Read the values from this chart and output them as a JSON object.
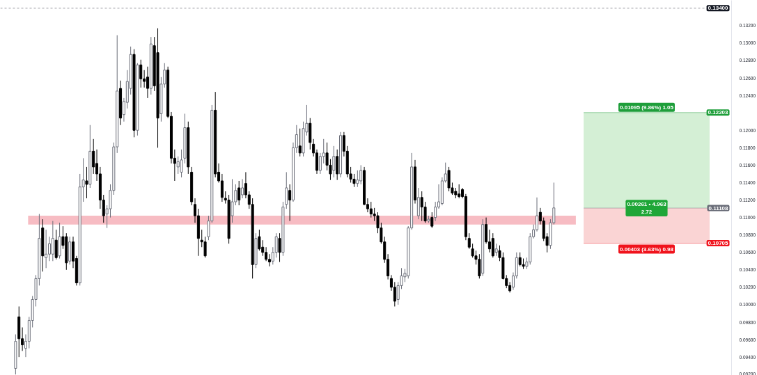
{
  "chart_data": {
    "type": "candlestick",
    "categories": [
      null,
      null,
      null,
      null,
      null,
      null,
      null,
      null,
      null,
      null,
      null,
      null,
      null,
      null,
      null,
      null,
      null,
      null,
      null,
      null,
      null,
      null,
      null,
      null,
      null,
      null,
      null,
      null,
      null,
      null,
      null,
      null,
      null,
      null,
      null,
      null,
      null,
      null,
      null,
      null,
      null,
      null,
      null,
      null,
      null,
      null,
      null,
      null,
      null,
      null,
      null,
      null,
      null,
      null,
      null,
      null,
      null,
      null,
      null,
      null,
      null,
      null,
      null,
      null,
      null,
      null,
      null,
      null,
      null,
      null,
      null,
      null,
      null,
      null,
      null,
      null,
      null,
      null,
      null,
      null,
      null,
      null,
      null,
      null,
      null,
      null,
      null,
      null,
      null,
      null,
      null,
      null,
      null,
      null,
      null,
      null,
      null,
      null,
      null,
      null,
      null,
      null,
      null,
      null,
      null,
      null,
      null,
      null,
      null,
      null,
      null,
      null,
      null,
      null,
      null,
      null,
      null,
      null,
      null,
      null,
      null,
      null,
      null,
      null,
      null,
      null,
      null,
      null,
      null,
      null,
      null,
      null,
      null,
      null,
      null,
      null,
      null,
      null,
      null,
      null,
      null,
      null,
      null,
      null,
      null,
      null,
      null,
      null,
      null,
      null,
      null,
      null,
      null,
      null,
      null,
      null,
      null,
      null,
      null,
      null,
      null,
      null,
      null,
      null,
      null,
      null,
      null,
      null,
      null,
      null,
      null,
      null,
      null,
      null,
      null,
      null,
      null,
      null,
      null,
      null,
      null,
      null,
      null,
      null,
      null,
      null,
      null,
      null,
      null,
      null,
      null,
      null,
      null,
      null,
      null,
      null,
      null,
      null,
      null,
      null,
      null,
      null,
      null,
      null,
      null,
      null,
      null,
      null,
      null,
      null,
      null,
      null,
      null,
      null,
      null,
      null
    ],
    "ohlc": [
      null,
      null,
      null,
      null,
      [
        0.0927,
        0.0966,
        0.092,
        0.0958
      ],
      [
        0.0986,
        0.0998,
        0.094,
        0.0961
      ],
      [
        0.0961,
        0.0974,
        0.0947,
        0.0954
      ],
      [
        0.095,
        0.0966,
        0.094,
        0.0958
      ],
      [
        0.0958,
        0.0986,
        0.095,
        0.0982
      ],
      [
        0.0982,
        0.101,
        0.0974,
        0.1006
      ],
      [
        0.1006,
        0.1034,
        0.0998,
        0.103
      ],
      [
        0.103,
        0.1104,
        0.1022,
        0.1076
      ],
      [
        0.1088,
        0.1098,
        0.1038,
        0.1056
      ],
      [
        0.1054,
        0.1086,
        0.1042,
        0.1058
      ],
      [
        0.1058,
        0.1078,
        0.105,
        0.107
      ],
      [
        0.1058,
        0.1096,
        0.105,
        0.1076
      ],
      [
        0.1074,
        0.1086,
        0.1052,
        0.1054
      ],
      [
        0.1056,
        0.1094,
        0.1053,
        0.1078
      ],
      [
        0.1078,
        0.109,
        0.1064,
        0.1068
      ],
      [
        0.1078,
        0.1082,
        0.104,
        0.1048
      ],
      [
        0.105,
        0.1078,
        0.1046,
        0.1072
      ],
      [
        0.1072,
        0.1078,
        0.1042,
        0.105
      ],
      [
        0.1053,
        0.1056,
        0.1022,
        0.1025
      ],
      [
        0.1025,
        0.115,
        0.1022,
        0.1135
      ],
      [
        0.1135,
        0.1168,
        0.1118,
        0.1143
      ],
      [
        0.1142,
        0.1158,
        0.1122,
        0.1138
      ],
      [
        0.1138,
        0.1206,
        0.1134,
        0.1176
      ],
      [
        0.1176,
        0.119,
        0.115,
        0.1158
      ],
      [
        0.1162,
        0.1178,
        0.1142,
        0.115
      ],
      [
        0.115,
        0.1158,
        0.111,
        0.112
      ],
      [
        0.112,
        0.1126,
        0.1094,
        0.1102
      ],
      [
        0.1104,
        0.1114,
        0.1088,
        0.111
      ],
      [
        0.111,
        0.1138,
        0.11,
        0.1131
      ],
      [
        0.1131,
        0.1186,
        0.1126,
        0.1181
      ],
      [
        0.1181,
        0.1309,
        0.1174,
        0.1245
      ],
      [
        0.1248,
        0.1257,
        0.1206,
        0.1214
      ],
      [
        0.1218,
        0.1237,
        0.121,
        0.1233
      ],
      [
        0.1232,
        0.1269,
        0.1225,
        0.1256
      ],
      [
        0.1248,
        0.1296,
        0.1241,
        0.1287
      ],
      [
        0.1287,
        0.1293,
        0.1192,
        0.12
      ],
      [
        0.12,
        0.1277,
        0.1194,
        0.1275
      ],
      [
        0.1275,
        0.1281,
        0.1249,
        0.1259
      ],
      [
        0.1259,
        0.1269,
        0.1249,
        0.1256
      ],
      [
        0.1261,
        0.1273,
        0.1237,
        0.1248
      ],
      [
        0.1248,
        0.1307,
        0.1241,
        0.1299
      ],
      [
        0.1297,
        0.1307,
        0.1245,
        0.1251
      ],
      [
        0.1289,
        0.1317,
        0.118,
        0.1214
      ],
      [
        0.1219,
        0.1261,
        0.121,
        0.1253
      ],
      [
        0.1253,
        0.1277,
        0.1249,
        0.1269
      ],
      [
        0.1269,
        0.1273,
        0.1214,
        0.1216
      ],
      [
        0.1216,
        0.1221,
        0.1162,
        0.1168
      ],
      [
        0.1168,
        0.1178,
        0.1142,
        0.1162
      ],
      [
        0.1158,
        0.117,
        0.115,
        0.1164
      ],
      [
        0.1152,
        0.1178,
        0.1146,
        0.1166
      ],
      [
        0.1168,
        0.1219,
        0.1162,
        0.1203
      ],
      [
        0.1203,
        0.121,
        0.115,
        0.1158
      ],
      [
        0.1152,
        0.1158,
        0.1114,
        0.1118
      ],
      [
        0.1115,
        0.1122,
        0.1094,
        0.1102
      ],
      [
        0.1102,
        0.111,
        0.1056,
        0.1076
      ],
      [
        0.1074,
        0.1086,
        0.1066,
        0.1072
      ],
      [
        0.1072,
        0.1078,
        0.1054,
        0.1056
      ],
      [
        0.1078,
        0.1102,
        0.1074,
        0.1096
      ],
      [
        0.1096,
        0.1229,
        0.1094,
        0.1223
      ],
      [
        0.1223,
        0.1244,
        0.1146,
        0.115
      ],
      [
        0.1152,
        0.1162,
        0.114,
        0.1142
      ],
      [
        0.1142,
        0.115,
        0.1118,
        0.1123
      ],
      [
        0.1122,
        0.113,
        0.1116,
        0.112
      ],
      [
        0.112,
        0.1126,
        0.107,
        0.1076
      ],
      [
        0.1102,
        0.1144,
        0.1094,
        0.1118
      ],
      [
        0.1118,
        0.1138,
        0.1114,
        0.1131
      ],
      [
        0.1134,
        0.1142,
        0.1114,
        0.112
      ],
      [
        0.1126,
        0.1144,
        0.1122,
        0.1134
      ],
      [
        0.1139,
        0.1152,
        0.1122,
        0.1126
      ],
      [
        0.1126,
        0.113,
        0.111,
        0.1115
      ],
      [
        0.1115,
        0.1122,
        0.103,
        0.1046
      ],
      [
        0.1046,
        0.1082,
        0.1042,
        0.1076
      ],
      [
        0.1078,
        0.1086,
        0.1062,
        0.1064
      ],
      [
        0.1066,
        0.1074,
        0.1056,
        0.106
      ],
      [
        0.106,
        0.1066,
        0.105,
        0.1052
      ],
      [
        0.1052,
        0.1058,
        0.1044,
        0.1049
      ],
      [
        0.105,
        0.1066,
        0.1046,
        0.106
      ],
      [
        0.106,
        0.1082,
        0.1054,
        0.1078
      ],
      [
        0.1076,
        0.1082,
        0.1049,
        0.106
      ],
      [
        0.106,
        0.1118,
        0.1056,
        0.1112
      ],
      [
        0.1115,
        0.1152,
        0.111,
        0.1134
      ],
      [
        0.1131,
        0.1138,
        0.1096,
        0.112
      ],
      [
        0.112,
        0.1186,
        0.1118,
        0.118
      ],
      [
        0.118,
        0.1206,
        0.1174,
        0.1195
      ],
      [
        0.1182,
        0.1202,
        0.117,
        0.1174
      ],
      [
        0.1174,
        0.121,
        0.117,
        0.1202
      ],
      [
        0.1198,
        0.1229,
        0.1194,
        0.1208
      ],
      [
        0.1208,
        0.1214,
        0.1178,
        0.1186
      ],
      [
        0.1184,
        0.119,
        0.117,
        0.1174
      ],
      [
        0.1174,
        0.1178,
        0.115,
        0.1154
      ],
      [
        0.1154,
        0.1174,
        0.115,
        0.117
      ],
      [
        0.117,
        0.119,
        0.1162,
        0.1174
      ],
      [
        0.1174,
        0.1186,
        0.1154,
        0.116
      ],
      [
        0.116,
        0.1167,
        0.1143,
        0.115
      ],
      [
        0.1154,
        0.1182,
        0.1146,
        0.117
      ],
      [
        0.117,
        0.1178,
        0.1143,
        0.115
      ],
      [
        0.115,
        0.1198,
        0.1146,
        0.1194
      ],
      [
        0.1194,
        0.1198,
        0.117,
        0.1176
      ],
      [
        0.1176,
        0.1182,
        0.1146,
        0.115
      ],
      [
        0.115,
        0.1158,
        0.114,
        0.1144
      ],
      [
        0.1144,
        0.115,
        0.1135,
        0.1139
      ],
      [
        0.1139,
        0.1154,
        0.1135,
        0.1143
      ],
      [
        0.1142,
        0.116,
        0.1138,
        0.1154
      ],
      [
        0.1154,
        0.1158,
        0.1114,
        0.1115
      ],
      [
        0.1115,
        0.1122,
        0.1106,
        0.111
      ],
      [
        0.111,
        0.1118,
        0.11,
        0.1104
      ],
      [
        0.1104,
        0.1111,
        0.1096,
        0.1102
      ],
      [
        0.1102,
        0.1106,
        0.1082,
        0.1088
      ],
      [
        0.1088,
        0.1094,
        0.107,
        0.1072
      ],
      [
        0.1072,
        0.1078,
        0.1048,
        0.1052
      ],
      [
        0.1052,
        0.1058,
        0.1029,
        0.1033
      ],
      [
        0.103,
        0.1034,
        0.1016,
        0.102
      ],
      [
        0.102,
        0.1026,
        0.0998,
        0.1004
      ],
      [
        0.1006,
        0.1026,
        0.1,
        0.1022
      ],
      [
        0.1022,
        0.1042,
        0.1018,
        0.1033
      ],
      [
        0.1032,
        0.1041,
        0.1026,
        0.1036
      ],
      [
        0.1033,
        0.109,
        0.103,
        0.1088
      ],
      [
        0.1088,
        0.1174,
        0.1086,
        0.1158
      ],
      [
        0.1158,
        0.1166,
        0.1116,
        0.112
      ],
      [
        0.1102,
        0.1134,
        0.1098,
        0.1123
      ],
      [
        0.1123,
        0.113,
        0.1096,
        0.1112
      ],
      [
        0.1112,
        0.1118,
        0.1094,
        0.1096
      ],
      [
        0.1096,
        0.1102,
        0.1094,
        0.1098
      ],
      [
        0.11,
        0.1106,
        0.1088,
        0.109
      ],
      [
        0.11,
        0.1118,
        0.1096,
        0.1112
      ],
      [
        0.1112,
        0.1138,
        0.111,
        0.1118
      ],
      [
        0.1116,
        0.1146,
        0.1114,
        0.1142
      ],
      [
        0.1142,
        0.1163,
        0.114,
        0.115
      ],
      [
        0.1154,
        0.1158,
        0.113,
        0.1134
      ],
      [
        0.1134,
        0.114,
        0.1126,
        0.1128
      ],
      [
        0.113,
        0.1134,
        0.1122,
        0.1126
      ],
      [
        0.1127,
        0.1138,
        0.1122,
        0.1124
      ],
      [
        0.1132,
        0.1134,
        0.1122,
        0.1124
      ],
      [
        0.1124,
        0.1127,
        0.1074,
        0.1078
      ],
      [
        0.1076,
        0.1082,
        0.1064,
        0.1066
      ],
      [
        0.1064,
        0.107,
        0.1054,
        0.1056
      ],
      [
        0.1056,
        0.1062,
        0.1046,
        0.1052
      ],
      [
        0.1052,
        0.1058,
        0.103,
        0.1033
      ],
      [
        0.1036,
        0.1098,
        0.1033,
        0.1092
      ],
      [
        0.1092,
        0.11,
        0.107,
        0.1072
      ],
      [
        0.1072,
        0.1086,
        0.106,
        0.1064
      ],
      [
        0.1076,
        0.1082,
        0.1054,
        0.1056
      ],
      [
        0.106,
        0.107,
        0.1056,
        0.1064
      ],
      [
        0.1062,
        0.1068,
        0.105,
        0.1054
      ],
      [
        0.1054,
        0.106,
        0.1029,
        0.103
      ],
      [
        0.103,
        0.1034,
        0.1019,
        0.1022
      ],
      [
        0.1022,
        0.1026,
        0.1014,
        0.1016
      ],
      [
        0.102,
        0.1037,
        0.1017,
        0.1033
      ],
      [
        0.1033,
        0.106,
        0.103,
        0.1054
      ],
      [
        0.1054,
        0.106,
        0.1044,
        0.1046
      ],
      [
        0.1046,
        0.1053,
        0.1041,
        0.1044
      ],
      [
        0.1044,
        0.1054,
        0.1041,
        0.1049
      ],
      [
        0.1049,
        0.1082,
        0.1046,
        0.1078
      ],
      [
        0.1078,
        0.1092,
        0.1076,
        0.1086
      ],
      [
        0.1086,
        0.1123,
        0.1084,
        0.1102
      ],
      [
        0.1106,
        0.1111,
        0.1092,
        0.1096
      ],
      [
        0.1096,
        0.11,
        0.1073,
        0.1076
      ],
      [
        0.1078,
        0.1082,
        0.106,
        0.1068
      ],
      [
        0.1068,
        0.1098,
        0.1064,
        0.1094
      ],
      [
        0.1094,
        0.114,
        0.1092,
        0.1111
      ],
      null,
      null,
      null,
      null,
      null,
      null,
      null,
      null,
      null,
      null,
      null,
      null,
      null,
      null,
      null,
      null,
      null,
      null,
      null,
      null,
      null,
      null,
      null,
      null,
      null,
      null,
      null,
      null,
      null,
      null,
      null,
      null,
      null,
      null,
      null,
      null,
      null,
      null,
      null,
      null,
      null,
      null,
      null,
      null,
      null,
      null,
      null,
      null,
      null,
      null,
      null,
      null
    ],
    "ylim": [
      0.0919,
      0.1349
    ],
    "yticks": [
      {
        "value": 0.092,
        "label": "0.09200"
      },
      {
        "value": 0.094,
        "label": "0.09400"
      },
      {
        "value": 0.096,
        "label": "0.09600"
      },
      {
        "value": 0.098,
        "label": "0.09800"
      },
      {
        "value": 0.1,
        "label": "0.10000"
      },
      {
        "value": 0.102,
        "label": "0.10200"
      },
      {
        "value": 0.104,
        "label": "0.10400"
      },
      {
        "value": 0.106,
        "label": "0.10600"
      },
      {
        "value": 0.108,
        "label": "0.10800"
      },
      {
        "value": 0.11,
        "label": "0.11000"
      },
      {
        "value": 0.112,
        "label": "0.11200"
      },
      {
        "value": 0.114,
        "label": "0.11400"
      },
      {
        "value": 0.116,
        "label": "0.11600"
      },
      {
        "value": 0.118,
        "label": "0.11800"
      },
      {
        "value": 0.12,
        "label": "0.12000"
      },
      {
        "value": 0.124,
        "label": "0.12400"
      },
      {
        "value": 0.126,
        "label": "0.12600"
      },
      {
        "value": 0.128,
        "label": "0.12800"
      },
      {
        "value": 0.13,
        "label": "0.13000"
      },
      {
        "value": 0.132,
        "label": "0.13200"
      }
    ],
    "tick_labels": "y",
    "grid": false,
    "bands": [
      {
        "axis": "y",
        "from": 0.1092,
        "to": 0.1102,
        "color": "#f7bcc3"
      },
      {
        "axis": "y",
        "from": 0.11108,
        "to": 0.12203,
        "color": "#d4efd5",
        "label": "0.01095 (9.86%) 1.05"
      },
      {
        "axis": "y",
        "from": 0.10705,
        "to": 0.11108,
        "color": "#fad4d4",
        "label": "0.00403 (3.63%) 0.98"
      }
    ],
    "ref_lines": [
      {
        "axis": "y",
        "value": 0.134,
        "label": "0.13400",
        "color": "#131722",
        "line_style": "dashed"
      },
      {
        "axis": "y",
        "value": 0.12203,
        "label": "0.12203",
        "color": "#1e9e3a"
      },
      {
        "axis": "y",
        "value": 0.11108,
        "label": "0.11108",
        "color": "#6a6d78"
      },
      {
        "axis": "y",
        "value": 0.10705,
        "label": "0.10705",
        "color": "#f0131c"
      }
    ],
    "annotations": [
      {
        "text": "0.00261 • 4.963\n2.72",
        "y": 0.11108
      }
    ]
  }
}
